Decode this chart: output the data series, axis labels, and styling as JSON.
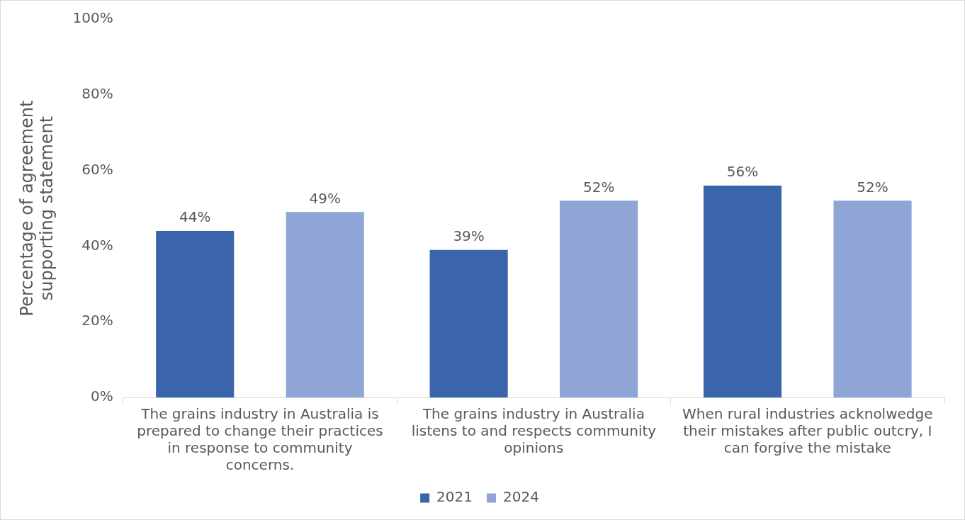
{
  "chart_data": {
    "type": "bar",
    "ylabel": "Percentage of agreement supporting statement",
    "categories": [
      "The grains industry in Australia is prepared to change their practices in response to community concerns.",
      "The grains industry in Australia listens to and respects community opinions",
      "When rural industries acknolwedge their mistakes after public outcry, I can forgive the mistake"
    ],
    "series": [
      {
        "name": "2021",
        "color": "#3a64ac",
        "values": [
          44,
          39,
          56
        ],
        "value_labels": [
          "44%",
          "39%",
          "56%"
        ]
      },
      {
        "name": "2024",
        "color": "#8fa5d6",
        "values": [
          49,
          52,
          52
        ],
        "value_labels": [
          "49%",
          "52%",
          "52%"
        ]
      }
    ],
    "ylim": [
      0,
      100
    ],
    "yticks": [
      {
        "value": 0,
        "label": "0%"
      },
      {
        "value": 20,
        "label": "20%"
      },
      {
        "value": 40,
        "label": "40%"
      },
      {
        "value": 60,
        "label": "60%"
      },
      {
        "value": 80,
        "label": "80%"
      },
      {
        "value": 100,
        "label": "100%"
      }
    ],
    "grid": false,
    "legend": "bottom"
  }
}
